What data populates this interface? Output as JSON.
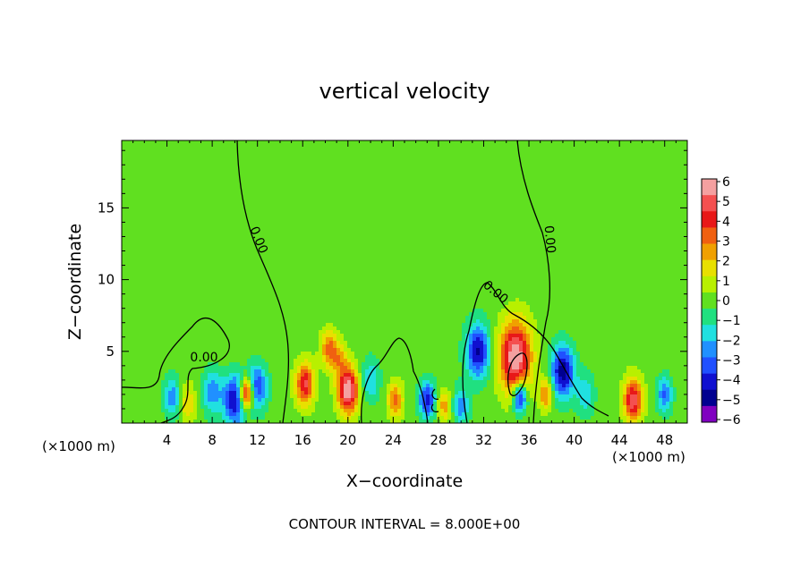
{
  "chart_data": {
    "type": "heatmap",
    "title": "vertical velocity",
    "xlabel": "X−coordinate",
    "ylabel": "Z−coordinate",
    "x_units": "(×1000 m)",
    "x_ticks": [
      4,
      8,
      12,
      16,
      20,
      24,
      28,
      32,
      36,
      40,
      44,
      48
    ],
    "y_ticks": [
      5,
      10,
      15
    ],
    "xlim": [
      0,
      50
    ],
    "ylim": [
      0,
      19.7
    ],
    "footer": "CONTOUR INTERVAL = 8.000E+00",
    "contour_label": "0.00",
    "colorbar": {
      "ticks": [
        6,
        5,
        4,
        3,
        2,
        1,
        0,
        -1,
        -2,
        -3,
        -4,
        -5,
        -6
      ],
      "tick_labels": [
        "6",
        "5",
        "4",
        "3",
        "2",
        "1",
        "0",
        "−1",
        "−2",
        "−3",
        "−4",
        "−5",
        "−6"
      ],
      "colors": [
        "#f4a0a0",
        "#f45050",
        "#e81818",
        "#f06010",
        "#f0a000",
        "#e8e000",
        "#b8f000",
        "#60e020",
        "#20e080",
        "#20e0e0",
        "#2090ff",
        "#2050ff",
        "#1010d0",
        "#000090",
        "#8000c0"
      ]
    },
    "features": [
      {
        "x": 4.5,
        "z": 1.8,
        "w": 0.8,
        "v": -2.5
      },
      {
        "x": 5.8,
        "z": 1.4,
        "w": 0.7,
        "v": 2.0
      },
      {
        "x": 8.0,
        "z": 2.2,
        "w": 0.9,
        "v": -2.5
      },
      {
        "x": 10.0,
        "z": 1.6,
        "w": 1.0,
        "v": -4.5
      },
      {
        "x": 11.0,
        "z": 2.0,
        "w": 0.6,
        "v": 6.0
      },
      {
        "x": 12.0,
        "z": 2.5,
        "w": 0.9,
        "v": -3.5
      },
      {
        "x": 16.2,
        "z": 2.7,
        "w": 0.8,
        "v": 4.5
      },
      {
        "x": 18.3,
        "z": 5.2,
        "w": 0.7,
        "v": 3.0
      },
      {
        "x": 19.2,
        "z": 4.5,
        "w": 0.7,
        "v": 2.0
      },
      {
        "x": 20.0,
        "z": 2.3,
        "w": 0.9,
        "v": 6.0
      },
      {
        "x": 22.0,
        "z": 3.0,
        "w": 0.8,
        "v": -2.0
      },
      {
        "x": 24.2,
        "z": 1.6,
        "w": 0.7,
        "v": 3.0
      },
      {
        "x": 27.0,
        "z": 1.6,
        "w": 0.7,
        "v": -4.0
      },
      {
        "x": 28.5,
        "z": 1.2,
        "w": 0.6,
        "v": 2.5
      },
      {
        "x": 30.0,
        "z": 1.2,
        "w": 0.7,
        "v": -2.5
      },
      {
        "x": 31.5,
        "z": 5.0,
        "w": 1.0,
        "v": -4.5
      },
      {
        "x": 34.8,
        "z": 4.6,
        "w": 1.4,
        "v": 6.0
      },
      {
        "x": 35.2,
        "z": 1.8,
        "w": 0.6,
        "v": -5.0
      },
      {
        "x": 37.5,
        "z": 2.0,
        "w": 0.6,
        "v": 3.0
      },
      {
        "x": 39.0,
        "z": 3.6,
        "w": 1.0,
        "v": -5.0
      },
      {
        "x": 41.0,
        "z": 2.0,
        "w": 0.8,
        "v": -2.0
      },
      {
        "x": 45.2,
        "z": 1.6,
        "w": 0.8,
        "v": 5.0
      },
      {
        "x": 48.0,
        "z": 2.0,
        "w": 0.7,
        "v": -3.0
      }
    ]
  }
}
